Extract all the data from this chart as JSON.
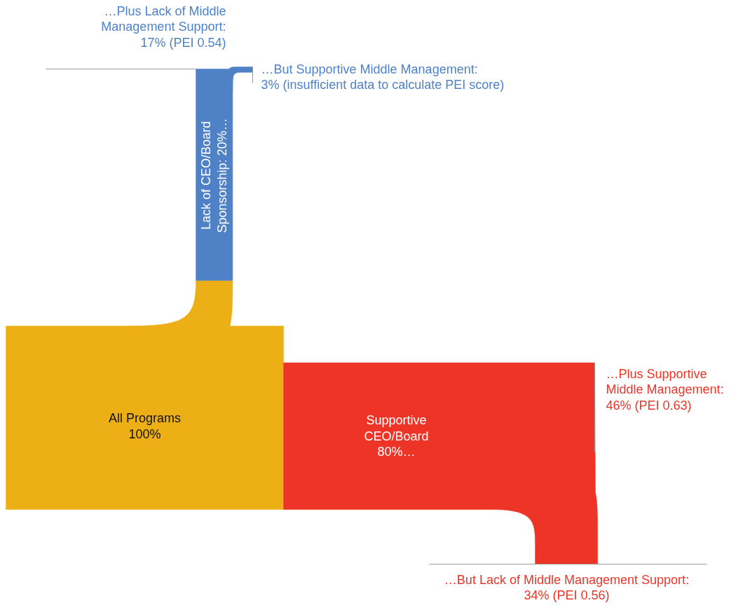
{
  "chart_data": {
    "type": "other",
    "categories": [
      "All Programs",
      "Lack of CEO/Board Sponsorship",
      "Supportive CEO/Board",
      "…Plus Lack of Middle Management Support",
      "…But Supportive Middle Management",
      "…Plus Supportive Middle Management",
      "…But Lack of Middle Management Support"
    ],
    "value_labels": [
      "100%",
      "20%…",
      "80%…",
      "17% (PEI 0.54)",
      "3% (insufficient data to calculate PEI score)",
      "46% (PEI 0.63)",
      "34% (PEI 0.56)"
    ],
    "values": [
      100,
      20,
      80,
      17,
      3,
      46,
      34
    ],
    "annotations": [
      ":"
    ],
    "colors": [
      "#ecb016",
      "#4f81c7",
      "#ee3427",
      "#4f81c7",
      "#4f81c7",
      "#ee3427",
      "#ee3427"
    ]
  }
}
